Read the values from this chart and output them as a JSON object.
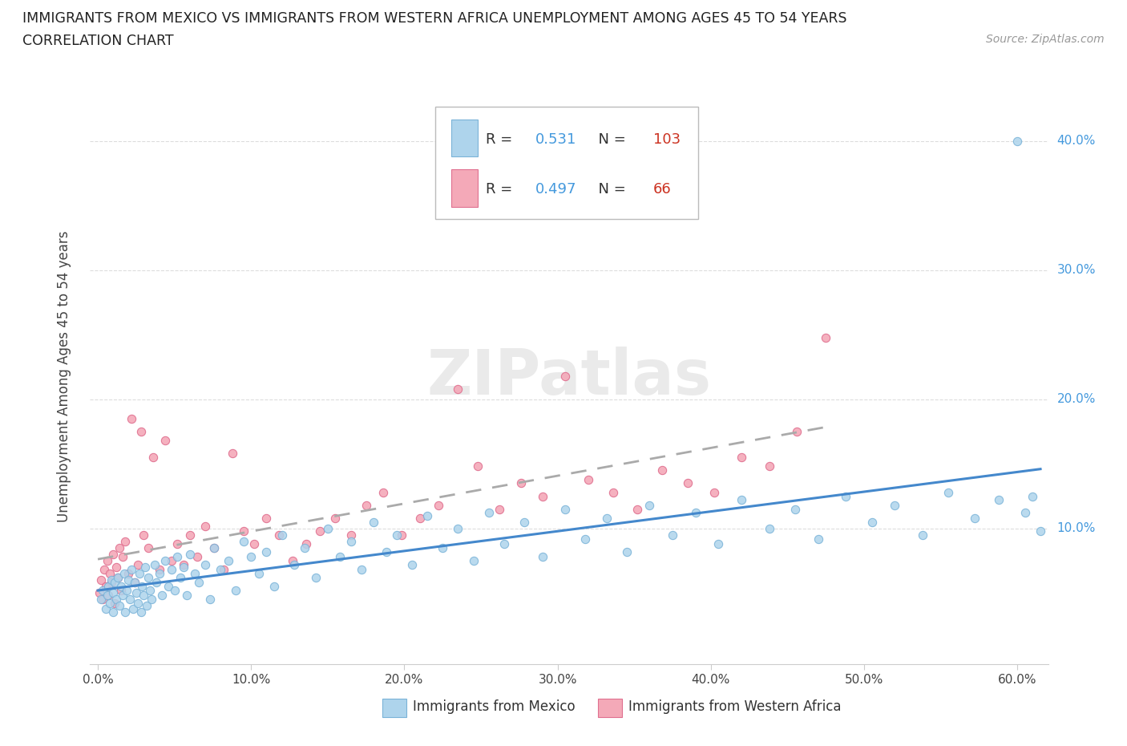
{
  "title_line1": "IMMIGRANTS FROM MEXICO VS IMMIGRANTS FROM WESTERN AFRICA UNEMPLOYMENT AMONG AGES 45 TO 54 YEARS",
  "title_line2": "CORRELATION CHART",
  "source_text": "Source: ZipAtlas.com",
  "ylabel": "Unemployment Among Ages 45 to 54 years",
  "xlim": [
    -0.005,
    0.62
  ],
  "ylim": [
    -0.005,
    0.44
  ],
  "xtick_labels": [
    "0.0%",
    "10.0%",
    "20.0%",
    "30.0%",
    "40.0%",
    "50.0%",
    "60.0%"
  ],
  "xtick_vals": [
    0.0,
    0.1,
    0.2,
    0.3,
    0.4,
    0.5,
    0.6
  ],
  "ytick_labels": [
    "10.0%",
    "20.0%",
    "30.0%",
    "40.0%"
  ],
  "ytick_vals": [
    0.1,
    0.2,
    0.3,
    0.4
  ],
  "mexico_color": "#aed4ec",
  "mexico_edge": "#7ab3d8",
  "wa_color": "#f4a9b8",
  "wa_edge": "#e07090",
  "trendline_mexico_color": "#4488cc",
  "trendline_wa_color": "#aaaaaa",
  "R_mexico": 0.531,
  "N_mexico": 103,
  "R_wa": 0.497,
  "N_wa": 66,
  "legend_label_mexico": "Immigrants from Mexico",
  "legend_label_wa": "Immigrants from Western Africa",
  "watermark": "ZIPatlas",
  "background_color": "#ffffff",
  "grid_color": "#dddddd",
  "ytick_color": "#4499dd",
  "legend_r_color": "#4499dd",
  "legend_n_color": "#cc3322",
  "mexico_x": [
    0.002,
    0.003,
    0.005,
    0.006,
    0.007,
    0.008,
    0.009,
    0.01,
    0.01,
    0.011,
    0.012,
    0.013,
    0.014,
    0.015,
    0.016,
    0.017,
    0.018,
    0.019,
    0.02,
    0.021,
    0.022,
    0.023,
    0.024,
    0.025,
    0.026,
    0.027,
    0.028,
    0.029,
    0.03,
    0.031,
    0.032,
    0.033,
    0.034,
    0.035,
    0.037,
    0.038,
    0.04,
    0.042,
    0.044,
    0.046,
    0.048,
    0.05,
    0.052,
    0.054,
    0.056,
    0.058,
    0.06,
    0.063,
    0.066,
    0.07,
    0.073,
    0.076,
    0.08,
    0.085,
    0.09,
    0.095,
    0.1,
    0.105,
    0.11,
    0.115,
    0.12,
    0.128,
    0.135,
    0.142,
    0.15,
    0.158,
    0.165,
    0.172,
    0.18,
    0.188,
    0.195,
    0.205,
    0.215,
    0.225,
    0.235,
    0.245,
    0.255,
    0.265,
    0.278,
    0.29,
    0.305,
    0.318,
    0.332,
    0.345,
    0.36,
    0.375,
    0.39,
    0.405,
    0.42,
    0.438,
    0.455,
    0.47,
    0.488,
    0.505,
    0.52,
    0.538,
    0.555,
    0.572,
    0.588,
    0.6,
    0.605,
    0.61,
    0.615
  ],
  "mexico_y": [
    0.045,
    0.052,
    0.038,
    0.048,
    0.055,
    0.042,
    0.06,
    0.05,
    0.035,
    0.058,
    0.045,
    0.062,
    0.04,
    0.055,
    0.048,
    0.065,
    0.035,
    0.052,
    0.06,
    0.045,
    0.068,
    0.038,
    0.058,
    0.05,
    0.042,
    0.065,
    0.035,
    0.055,
    0.048,
    0.07,
    0.04,
    0.062,
    0.052,
    0.045,
    0.072,
    0.058,
    0.065,
    0.048,
    0.075,
    0.055,
    0.068,
    0.052,
    0.078,
    0.062,
    0.07,
    0.048,
    0.08,
    0.065,
    0.058,
    0.072,
    0.045,
    0.085,
    0.068,
    0.075,
    0.052,
    0.09,
    0.078,
    0.065,
    0.082,
    0.055,
    0.095,
    0.072,
    0.085,
    0.062,
    0.1,
    0.078,
    0.09,
    0.068,
    0.105,
    0.082,
    0.095,
    0.072,
    0.11,
    0.085,
    0.1,
    0.075,
    0.112,
    0.088,
    0.105,
    0.078,
    0.115,
    0.092,
    0.108,
    0.082,
    0.118,
    0.095,
    0.112,
    0.088,
    0.122,
    0.1,
    0.115,
    0.092,
    0.125,
    0.105,
    0.118,
    0.095,
    0.128,
    0.108,
    0.122,
    0.4,
    0.112,
    0.125,
    0.098
  ],
  "wa_x": [
    0.001,
    0.002,
    0.003,
    0.004,
    0.005,
    0.006,
    0.007,
    0.008,
    0.009,
    0.01,
    0.011,
    0.012,
    0.013,
    0.014,
    0.015,
    0.016,
    0.018,
    0.02,
    0.022,
    0.024,
    0.026,
    0.028,
    0.03,
    0.033,
    0.036,
    0.04,
    0.044,
    0.048,
    0.052,
    0.056,
    0.06,
    0.065,
    0.07,
    0.076,
    0.082,
    0.088,
    0.095,
    0.102,
    0.11,
    0.118,
    0.127,
    0.136,
    0.145,
    0.155,
    0.165,
    0.175,
    0.186,
    0.198,
    0.21,
    0.222,
    0.235,
    0.248,
    0.262,
    0.276,
    0.29,
    0.305,
    0.32,
    0.336,
    0.352,
    0.368,
    0.385,
    0.402,
    0.42,
    0.438,
    0.456,
    0.475
  ],
  "wa_y": [
    0.05,
    0.06,
    0.045,
    0.068,
    0.055,
    0.075,
    0.048,
    0.065,
    0.058,
    0.08,
    0.042,
    0.07,
    0.062,
    0.085,
    0.052,
    0.078,
    0.09,
    0.065,
    0.185,
    0.058,
    0.072,
    0.175,
    0.095,
    0.085,
    0.155,
    0.068,
    0.168,
    0.075,
    0.088,
    0.072,
    0.095,
    0.078,
    0.102,
    0.085,
    0.068,
    0.158,
    0.098,
    0.088,
    0.108,
    0.095,
    0.075,
    0.088,
    0.098,
    0.108,
    0.095,
    0.118,
    0.128,
    0.095,
    0.108,
    0.118,
    0.208,
    0.148,
    0.115,
    0.135,
    0.125,
    0.218,
    0.138,
    0.128,
    0.115,
    0.145,
    0.135,
    0.128,
    0.155,
    0.148,
    0.175,
    0.248
  ]
}
